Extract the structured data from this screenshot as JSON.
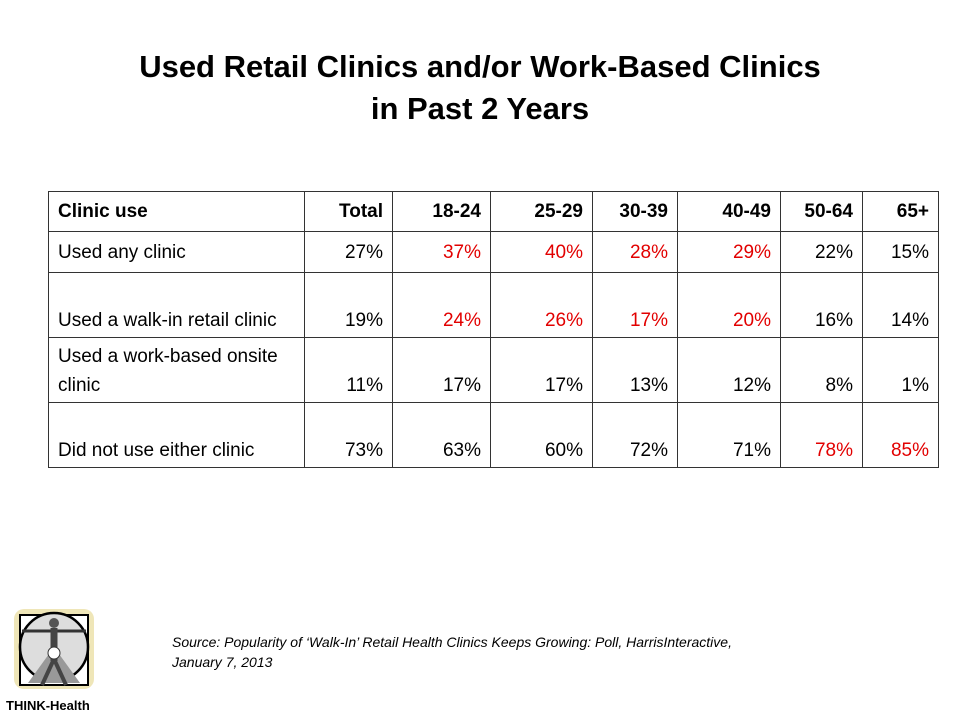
{
  "title_line1": "Used Retail Clinics and/or Work-Based Clinics",
  "title_line2": "in Past 2 Years",
  "table": {
    "headers": [
      "Clinic use",
      "Total",
      "18-24",
      "25-29",
      "30-39",
      "40-49",
      "50-64",
      "65+"
    ],
    "rows": [
      {
        "label": "Used any clinic",
        "values": [
          "27%",
          "37%",
          "40%",
          "28%",
          "29%",
          "22%",
          "15%"
        ],
        "highlight": [
          false,
          true,
          true,
          true,
          true,
          false,
          false
        ]
      },
      {
        "label": "Used a walk-in retail clinic",
        "values": [
          "19%",
          "24%",
          "26%",
          "17%",
          "20%",
          "16%",
          "14%"
        ],
        "highlight": [
          false,
          true,
          true,
          true,
          true,
          false,
          false
        ]
      },
      {
        "label": "Used a work-based onsite clinic",
        "values": [
          "11%",
          "17%",
          "17%",
          "13%",
          "12%",
          "8%",
          "1%"
        ],
        "highlight": [
          false,
          false,
          false,
          false,
          false,
          false,
          false
        ]
      },
      {
        "label": "Did not use either clinic",
        "values": [
          "73%",
          "63%",
          "60%",
          "72%",
          "71%",
          "78%",
          "85%"
        ],
        "highlight": [
          false,
          false,
          false,
          false,
          false,
          true,
          true
        ]
      }
    ]
  },
  "source_line1": "Source: Popularity of ‘Walk-In’ Retail Health Clinics Keeps Growing:  Poll, HarrisInteractive,",
  "source_line2": "January 7, 2013",
  "logo_text": "THINK-Health",
  "colors": {
    "highlight": "#e20000"
  }
}
